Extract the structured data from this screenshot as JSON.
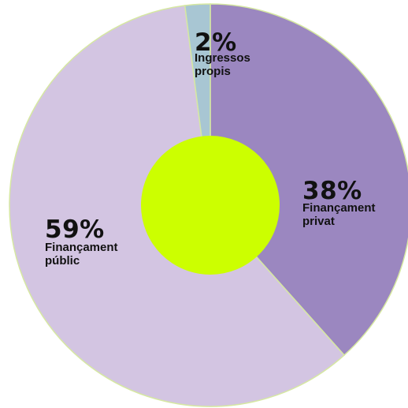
{
  "chart_data": {
    "type": "pie",
    "donut": true,
    "slices": [
      {
        "label": "Finançament privat",
        "label_lines": [
          "Finançament",
          "privat"
        ],
        "value": 38,
        "value_label": "38%",
        "color": "#9b87c0"
      },
      {
        "label": "Finançament públic",
        "label_lines": [
          "Finançament",
          "públic"
        ],
        "value": 59,
        "value_label": "59%",
        "color": "#d3c5e2"
      },
      {
        "label": "Ingressos propis",
        "label_lines": [
          "Ingressos",
          "propis"
        ],
        "value": 2,
        "value_label": "2%",
        "color": "#a8c6d3"
      }
    ],
    "center_color": "#ccff00",
    "stroke_color": "#d6e8a2",
    "legend": "none"
  }
}
